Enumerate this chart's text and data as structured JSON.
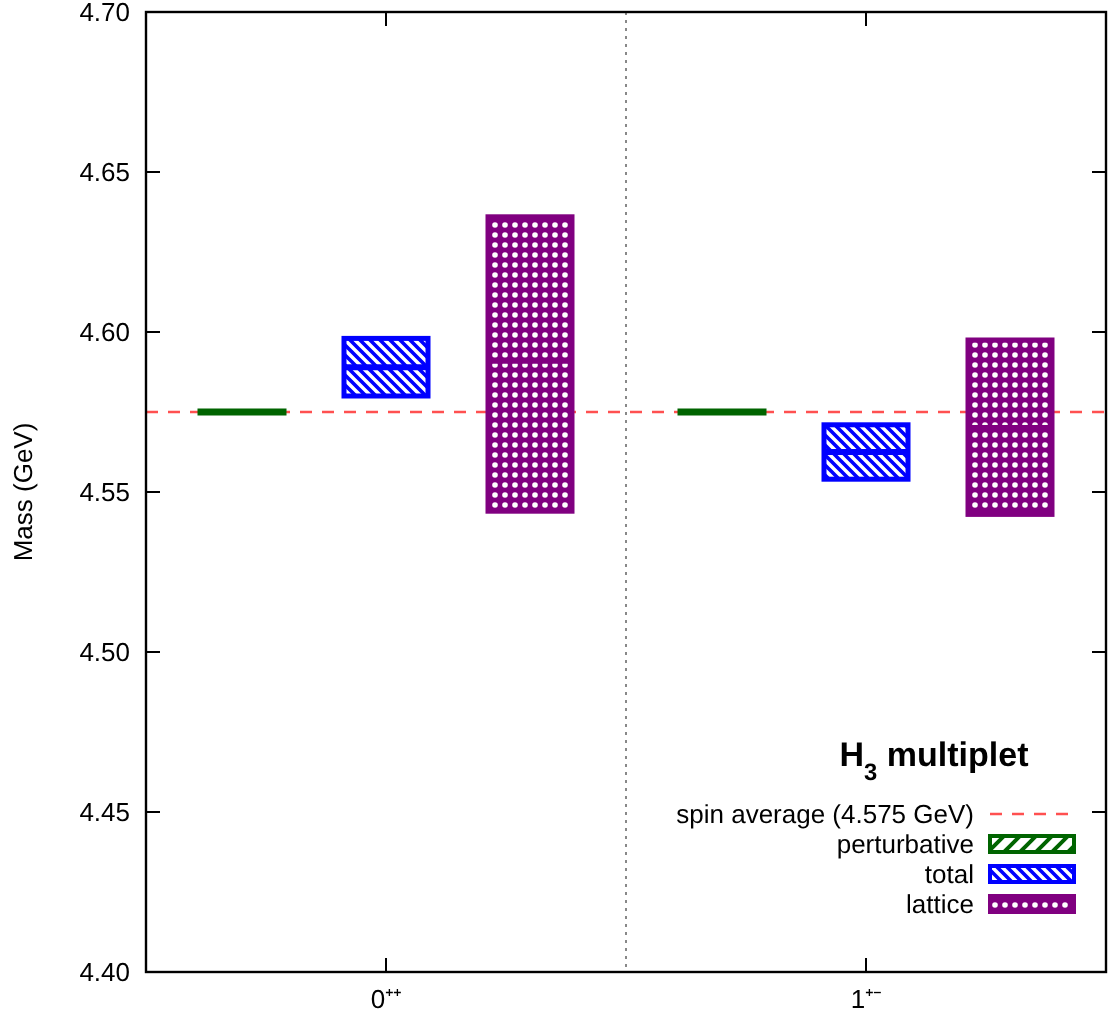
{
  "chart_data": {
    "type": "box",
    "ylabel": "Mass (GeV)",
    "legend_title": "H$_{3}$ multiplet",
    "categories": [
      "0⁺⁺",
      "1⁺⁻"
    ],
    "ylim": [
      4.4,
      4.7
    ],
    "yticks": [
      {
        "value": 4.4,
        "label": "4.40"
      },
      {
        "value": 4.45,
        "label": "4.45"
      },
      {
        "value": 4.5,
        "label": "4.50"
      },
      {
        "value": 4.55,
        "label": "4.55"
      },
      {
        "value": 4.6,
        "label": "4.60"
      },
      {
        "value": 4.65,
        "label": "4.65"
      },
      {
        "value": 4.7,
        "label": "4.70"
      }
    ],
    "grid": false,
    "legend": "bottom right",
    "ref_lines": [
      {
        "axis": "y",
        "value": 4.575,
        "label": "spin average (4.575 GeV)",
        "color": "#ff5050",
        "line_style": "dashed"
      }
    ],
    "series": [
      {
        "name": "perturbative",
        "color": "#006400",
        "boxes": [
          {
            "low": 4.575,
            "q1": 4.575,
            "median": 4.575,
            "q3": 4.575,
            "high": 4.575
          },
          {
            "low": 4.575,
            "q1": 4.575,
            "median": 4.575,
            "q3": 4.575,
            "high": 4.575
          }
        ]
      },
      {
        "name": "total",
        "color": "#0000ff",
        "boxes": [
          {
            "low": 4.58,
            "q1": 4.58,
            "median": 4.589,
            "q3": 4.598,
            "high": 4.598
          },
          {
            "low": 4.554,
            "q1": 4.554,
            "median": 4.5625,
            "q3": 4.571,
            "high": 4.571
          }
        ]
      },
      {
        "name": "lattice",
        "color": "#800080",
        "boxes": [
          {
            "low": 4.544,
            "q1": 4.544,
            "median": 4.591,
            "q3": 4.636,
            "high": 4.636
          },
          {
            "low": 4.543,
            "q1": 4.543,
            "median": 4.57,
            "q3": 4.5975,
            "high": 4.5975
          }
        ]
      }
    ]
  }
}
